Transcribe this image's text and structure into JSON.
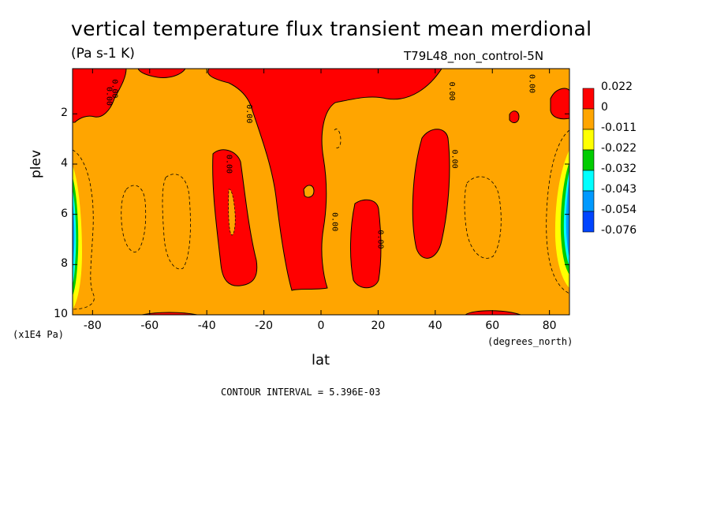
{
  "chart_data": {
    "type": "heatmap",
    "title": "vertical temperature flux transient mean merdional",
    "units": "(Pa s-1 K)",
    "run_label": "T79L48_non_control-5N",
    "xlabel": "lat",
    "xlabel_units": "(degrees_north)",
    "ylabel": "plev",
    "ylabel_units": "(x1E4 Pa)",
    "x_ticks": [
      -80,
      -60,
      -40,
      -20,
      0,
      20,
      40,
      60,
      80
    ],
    "y_ticks": [
      2,
      4,
      6,
      8,
      10
    ],
    "x_tick_labels": [
      "-80",
      "-60",
      "-40",
      "-20",
      "0",
      "20",
      "40",
      "60",
      "80"
    ],
    "y_tick_labels": [
      "2",
      "4",
      "6",
      "8",
      "10"
    ],
    "xlim": [
      -87,
      87
    ],
    "ylim": [
      10,
      0.2
    ],
    "contour_interval_text": "CONTOUR INTERVAL = 5.396E-03",
    "contour_labels": [
      "0.00",
      "0.00",
      "0.00",
      "0.00",
      "0.00",
      "0.00",
      "0.00",
      "0.00",
      "0.00"
    ],
    "colorbar": {
      "labels": [
        "0.022",
        "0",
        "-0.011",
        "-0.022",
        "-0.032",
        "-0.043",
        "-0.054",
        "-0.076"
      ],
      "colors": [
        "#ff0000",
        "#ffa500",
        "#ffff00",
        "#00cc00",
        "#00ffff",
        "#0099ff",
        "#0044ff"
      ]
    },
    "regions_positive": [
      {
        "lat": [
          -87,
          -73
        ],
        "plev": [
          0.2,
          2.3
        ]
      },
      {
        "lat": [
          -63,
          -52
        ],
        "plev": [
          0.2,
          1.2
        ]
      },
      {
        "lat": [
          -38,
          -22
        ],
        "plev": [
          3.2,
          8.7
        ]
      },
      {
        "lat": [
          -22,
          3
        ],
        "plev": [
          0.2,
          9.4
        ]
      },
      {
        "lat": [
          10,
          21
        ],
        "plev": [
          5.6,
          9.4
        ]
      },
      {
        "lat": [
          35,
          47
        ],
        "plev": [
          2.6,
          7.6
        ]
      },
      {
        "lat": [
          3,
          40
        ],
        "plev": [
          0.2,
          2.6
        ]
      },
      {
        "lat": [
          80,
          87
        ],
        "plev": [
          1.2,
          2.5
        ]
      }
    ],
    "regions_negative_strong": [
      {
        "lat": [
          -87,
          -83
        ],
        "plev": [
          4.0,
          9.6
        ],
        "min": -0.076
      },
      {
        "lat": [
          83,
          87
        ],
        "plev": [
          3.5,
          8.5
        ],
        "min": -0.076
      }
    ]
  }
}
